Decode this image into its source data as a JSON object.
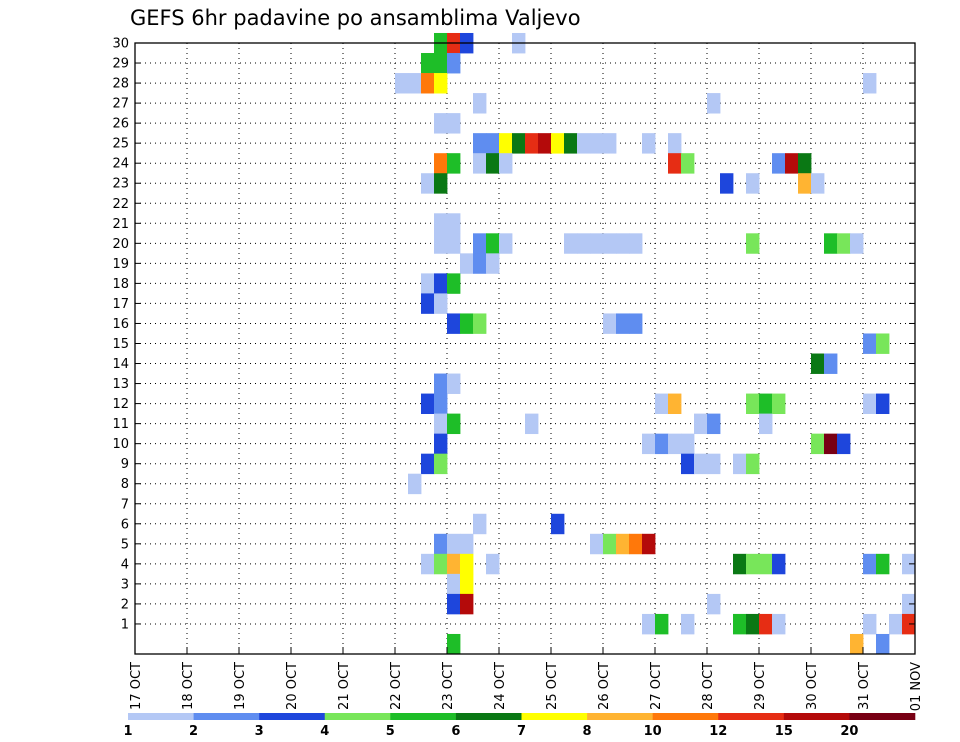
{
  "chart_data": {
    "type": "heatmap",
    "title": "GEFS 6hr padavine po ansamblima Valjevo",
    "x_tick_labels": [
      "17 OCT",
      "18 OCT",
      "19 OCT",
      "20 OCT",
      "21 OCT",
      "22 OCT",
      "23 OCT",
      "24 OCT",
      "25 OCT",
      "26 OCT",
      "27 OCT",
      "28 OCT",
      "29 OCT",
      "30 OCT",
      "31 OCT",
      "01 NOV"
    ],
    "x_unit": "6-hour steps after 17 OCT 00Z",
    "xlim": [
      0,
      60
    ],
    "y_tick_labels": [
      "1",
      "2",
      "3",
      "4",
      "5",
      "6",
      "7",
      "8",
      "9",
      "10",
      "11",
      "12",
      "13",
      "14",
      "15",
      "16",
      "17",
      "18",
      "19",
      "20",
      "21",
      "22",
      "23",
      "24",
      "25",
      "26",
      "27",
      "28",
      "29",
      "30"
    ],
    "ylim": [
      0,
      30
    ],
    "grid": true,
    "legend": {
      "position": "bottom",
      "labels": [
        "1",
        "2",
        "3",
        "4",
        "5",
        "6",
        "7",
        "8",
        "10",
        "12",
        "15",
        "20"
      ],
      "colors": [
        "#b4c8f5",
        "#5f8df0",
        "#1e46dc",
        "#78e65a",
        "#1ebe28",
        "#0a7814",
        "#ffff00",
        "#ffb432",
        "#ff780a",
        "#e62d14",
        "#b40a0a",
        "#780014"
      ]
    },
    "cells": [
      {
        "member": 30,
        "t": 23,
        "level": 4
      },
      {
        "member": 30,
        "t": 24,
        "level": 9
      },
      {
        "member": 30,
        "t": 25,
        "level": 2
      },
      {
        "member": 30,
        "t": 29,
        "level": 0
      },
      {
        "member": 29,
        "t": 22,
        "level": 4
      },
      {
        "member": 29,
        "t": 23,
        "level": 4
      },
      {
        "member": 29,
        "t": 24,
        "level": 1
      },
      {
        "member": 28,
        "t": 20,
        "level": 0
      },
      {
        "member": 28,
        "t": 21,
        "level": 0
      },
      {
        "member": 28,
        "t": 22,
        "level": 8
      },
      {
        "member": 28,
        "t": 23,
        "level": 6
      },
      {
        "member": 28,
        "t": 56,
        "level": 0
      },
      {
        "member": 27,
        "t": 26,
        "level": 0
      },
      {
        "member": 27,
        "t": 44,
        "level": 0
      },
      {
        "member": 26,
        "t": 23,
        "level": 0
      },
      {
        "member": 26,
        "t": 24,
        "level": 0
      },
      {
        "member": 25,
        "t": 26,
        "level": 1
      },
      {
        "member": 25,
        "t": 27,
        "level": 1
      },
      {
        "member": 25,
        "t": 28,
        "level": 6
      },
      {
        "member": 25,
        "t": 29,
        "level": 5
      },
      {
        "member": 25,
        "t": 30,
        "level": 9
      },
      {
        "member": 25,
        "t": 31,
        "level": 10
      },
      {
        "member": 25,
        "t": 32,
        "level": 6
      },
      {
        "member": 25,
        "t": 33,
        "level": 5
      },
      {
        "member": 25,
        "t": 34,
        "level": 0
      },
      {
        "member": 25,
        "t": 35,
        "level": 0
      },
      {
        "member": 25,
        "t": 36,
        "level": 0
      },
      {
        "member": 25,
        "t": 39,
        "level": 0
      },
      {
        "member": 25,
        "t": 41,
        "level": 0
      },
      {
        "member": 24,
        "t": 23,
        "level": 8
      },
      {
        "member": 24,
        "t": 24,
        "level": 4
      },
      {
        "member": 24,
        "t": 26,
        "level": 0
      },
      {
        "member": 24,
        "t": 27,
        "level": 5
      },
      {
        "member": 24,
        "t": 28,
        "level": 0
      },
      {
        "member": 24,
        "t": 41,
        "level": 9
      },
      {
        "member": 24,
        "t": 42,
        "level": 3
      },
      {
        "member": 24,
        "t": 49,
        "level": 1
      },
      {
        "member": 24,
        "t": 50,
        "level": 10
      },
      {
        "member": 24,
        "t": 51,
        "level": 5
      },
      {
        "member": 23,
        "t": 22,
        "level": 0
      },
      {
        "member": 23,
        "t": 23,
        "level": 5
      },
      {
        "member": 23,
        "t": 45,
        "level": 2
      },
      {
        "member": 23,
        "t": 47,
        "level": 0
      },
      {
        "member": 23,
        "t": 51,
        "level": 7
      },
      {
        "member": 23,
        "t": 52,
        "level": 0
      },
      {
        "member": 21,
        "t": 23,
        "level": 0
      },
      {
        "member": 21,
        "t": 24,
        "level": 0
      },
      {
        "member": 20,
        "t": 23,
        "level": 0
      },
      {
        "member": 20,
        "t": 24,
        "level": 0
      },
      {
        "member": 20,
        "t": 26,
        "level": 1
      },
      {
        "member": 20,
        "t": 27,
        "level": 4
      },
      {
        "member": 20,
        "t": 28,
        "level": 0
      },
      {
        "member": 20,
        "t": 33,
        "level": 0
      },
      {
        "member": 20,
        "t": 34,
        "level": 0
      },
      {
        "member": 20,
        "t": 35,
        "level": 0
      },
      {
        "member": 20,
        "t": 36,
        "level": 0
      },
      {
        "member": 20,
        "t": 37,
        "level": 0
      },
      {
        "member": 20,
        "t": 38,
        "level": 0
      },
      {
        "member": 20,
        "t": 47,
        "level": 3
      },
      {
        "member": 20,
        "t": 53,
        "level": 4
      },
      {
        "member": 20,
        "t": 54,
        "level": 3
      },
      {
        "member": 20,
        "t": 55,
        "level": 0
      },
      {
        "member": 19,
        "t": 25,
        "level": 0
      },
      {
        "member": 19,
        "t": 26,
        "level": 1
      },
      {
        "member": 19,
        "t": 27,
        "level": 0
      },
      {
        "member": 18,
        "t": 22,
        "level": 0
      },
      {
        "member": 18,
        "t": 23,
        "level": 2
      },
      {
        "member": 18,
        "t": 24,
        "level": 4
      },
      {
        "member": 17,
        "t": 22,
        "level": 2
      },
      {
        "member": 17,
        "t": 23,
        "level": 0
      },
      {
        "member": 16,
        "t": 24,
        "level": 2
      },
      {
        "member": 16,
        "t": 25,
        "level": 4
      },
      {
        "member": 16,
        "t": 26,
        "level": 3
      },
      {
        "member": 16,
        "t": 36,
        "level": 0
      },
      {
        "member": 16,
        "t": 37,
        "level": 1
      },
      {
        "member": 16,
        "t": 38,
        "level": 1
      },
      {
        "member": 15,
        "t": 56,
        "level": 1
      },
      {
        "member": 15,
        "t": 57,
        "level": 3
      },
      {
        "member": 14,
        "t": 52,
        "level": 5
      },
      {
        "member": 14,
        "t": 53,
        "level": 1
      },
      {
        "member": 13,
        "t": 23,
        "level": 1
      },
      {
        "member": 13,
        "t": 24,
        "level": 0
      },
      {
        "member": 12,
        "t": 22,
        "level": 2
      },
      {
        "member": 12,
        "t": 23,
        "level": 1
      },
      {
        "member": 12,
        "t": 40,
        "level": 0
      },
      {
        "member": 12,
        "t": 41,
        "level": 7
      },
      {
        "member": 12,
        "t": 47,
        "level": 3
      },
      {
        "member": 12,
        "t": 48,
        "level": 4
      },
      {
        "member": 12,
        "t": 49,
        "level": 3
      },
      {
        "member": 12,
        "t": 56,
        "level": 0
      },
      {
        "member": 12,
        "t": 57,
        "level": 2
      },
      {
        "member": 11,
        "t": 23,
        "level": 0
      },
      {
        "member": 11,
        "t": 24,
        "level": 4
      },
      {
        "member": 11,
        "t": 30,
        "level": 0
      },
      {
        "member": 11,
        "t": 43,
        "level": 0
      },
      {
        "member": 11,
        "t": 44,
        "level": 1
      },
      {
        "member": 11,
        "t": 48,
        "level": 0
      },
      {
        "member": 10,
        "t": 23,
        "level": 2
      },
      {
        "member": 10,
        "t": 39,
        "level": 0
      },
      {
        "member": 10,
        "t": 40,
        "level": 1
      },
      {
        "member": 10,
        "t": 41,
        "level": 0
      },
      {
        "member": 10,
        "t": 42,
        "level": 0
      },
      {
        "member": 10,
        "t": 52,
        "level": 3
      },
      {
        "member": 10,
        "t": 53,
        "level": 11
      },
      {
        "member": 10,
        "t": 54,
        "level": 2
      },
      {
        "member": 9,
        "t": 22,
        "level": 2
      },
      {
        "member": 9,
        "t": 23,
        "level": 3
      },
      {
        "member": 9,
        "t": 42,
        "level": 2
      },
      {
        "member": 9,
        "t": 43,
        "level": 0
      },
      {
        "member": 9,
        "t": 44,
        "level": 0
      },
      {
        "member": 9,
        "t": 46,
        "level": 0
      },
      {
        "member": 9,
        "t": 47,
        "level": 3
      },
      {
        "member": 8,
        "t": 21,
        "level": 0
      },
      {
        "member": 6,
        "t": 26,
        "level": 0
      },
      {
        "member": 6,
        "t": 32,
        "level": 2
      },
      {
        "member": 5,
        "t": 23,
        "level": 1
      },
      {
        "member": 5,
        "t": 24,
        "level": 0
      },
      {
        "member": 5,
        "t": 25,
        "level": 0
      },
      {
        "member": 5,
        "t": 35,
        "level": 0
      },
      {
        "member": 5,
        "t": 36,
        "level": 3
      },
      {
        "member": 5,
        "t": 37,
        "level": 7
      },
      {
        "member": 5,
        "t": 38,
        "level": 8
      },
      {
        "member": 5,
        "t": 39,
        "level": 10
      },
      {
        "member": 4,
        "t": 22,
        "level": 0
      },
      {
        "member": 4,
        "t": 23,
        "level": 3
      },
      {
        "member": 4,
        "t": 24,
        "level": 7
      },
      {
        "member": 4,
        "t": 25,
        "level": 6
      },
      {
        "member": 4,
        "t": 27,
        "level": 0
      },
      {
        "member": 4,
        "t": 46,
        "level": 5
      },
      {
        "member": 4,
        "t": 47,
        "level": 3
      },
      {
        "member": 4,
        "t": 48,
        "level": 3
      },
      {
        "member": 4,
        "t": 49,
        "level": 2
      },
      {
        "member": 4,
        "t": 56,
        "level": 1
      },
      {
        "member": 4,
        "t": 57,
        "level": 4
      },
      {
        "member": 4,
        "t": 59,
        "level": 0
      },
      {
        "member": 3,
        "t": 24,
        "level": 0
      },
      {
        "member": 3,
        "t": 25,
        "level": 6
      },
      {
        "member": 2,
        "t": 24,
        "level": 2
      },
      {
        "member": 2,
        "t": 25,
        "level": 10
      },
      {
        "member": 2,
        "t": 44,
        "level": 0
      },
      {
        "member": 2,
        "t": 59,
        "level": 0
      },
      {
        "member": 1,
        "t": 39,
        "level": 0
      },
      {
        "member": 1,
        "t": 40,
        "level": 4
      },
      {
        "member": 1,
        "t": 42,
        "level": 0
      },
      {
        "member": 1,
        "t": 46,
        "level": 4
      },
      {
        "member": 1,
        "t": 47,
        "level": 5
      },
      {
        "member": 1,
        "t": 48,
        "level": 9
      },
      {
        "member": 1,
        "t": 49,
        "level": 0
      },
      {
        "member": 1,
        "t": 56,
        "level": 0
      },
      {
        "member": 1,
        "t": 58,
        "level": 0
      },
      {
        "member": 1,
        "t": 59,
        "level": 9
      },
      {
        "member": 0,
        "t": 24,
        "level": 4
      },
      {
        "member": 0,
        "t": 55,
        "level": 7
      },
      {
        "member": 0,
        "t": 57,
        "level": 1
      }
    ]
  }
}
